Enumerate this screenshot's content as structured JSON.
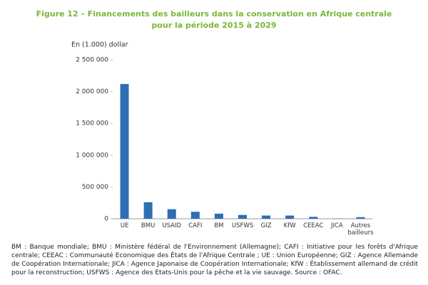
{
  "chart_data": {
    "type": "bar",
    "title": [
      "Figure 12 – Financements des bailleurs dans la conservation en Afrique centrale",
      "pour la période 2015 à 2029"
    ],
    "y_label": "En (1.000) dollar",
    "categories": [
      "UE",
      "BMU",
      "USAID",
      "CAFI",
      "BM",
      "USFWS",
      "GIZ",
      "KfW",
      "CEEAC",
      "JICA",
      "Autres bailleurs"
    ],
    "values": [
      2120000,
      260000,
      150000,
      110000,
      80000,
      60000,
      50000,
      50000,
      30000,
      4000,
      25000
    ],
    "color": "#2f6db5",
    "ylim": [
      0,
      2500000
    ],
    "yticks": [
      0,
      {
        "value": 500000,
        "label": "500 000"
      },
      {
        "value": 1000000,
        "label": "1 000 000"
      },
      {
        "value": 1500000,
        "label": "1 500 000"
      },
      {
        "value": 2000000,
        "label": "2 000 000"
      },
      {
        "value": 2500000,
        "label": "2 500 000"
      }
    ],
    "grid": false,
    "note": "BM : Banque mondiale; BMU : Ministère fédéral de l'Environnement (Allemagne); CAFI : Initiative pour les forêts d'Afrique centrale; CEEAC : Communauté Economique des États de l'Afrique Centrale ; UE : Union Européenne; GIZ : Agence Allemande de Coopération Internationale; JICA : Agence Japonaise de Coopération Internationale; KfW : Établissement allemand de crédit pour la reconstruction; USFWS : Agence des Etats-Unis pour la pêche et la vie sauvage. Source : OFAC."
  }
}
